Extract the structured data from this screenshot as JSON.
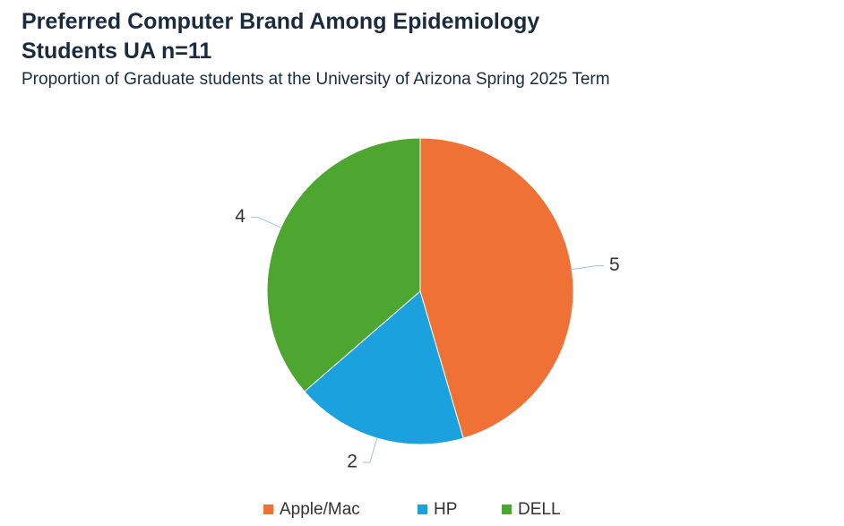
{
  "chart_data": {
    "type": "pie",
    "title": "Preferred Computer Brand Among Epidemiology Students UA n=11",
    "subtitle": "Proportion of Graduate students at the University of Arizona Spring 2025 Term",
    "categories": [
      "Apple/Mac",
      "HP",
      "DELL"
    ],
    "values": [
      5,
      2,
      4
    ],
    "colors": [
      "#ef7135",
      "#1ba1dd",
      "#4da62f"
    ],
    "legend": "bottom"
  }
}
